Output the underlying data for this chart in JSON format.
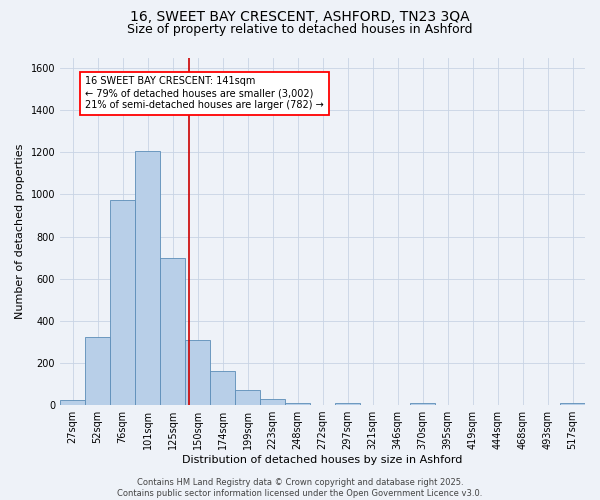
{
  "title_line1": "16, SWEET BAY CRESCENT, ASHFORD, TN23 3QA",
  "title_line2": "Size of property relative to detached houses in Ashford",
  "xlabel": "Distribution of detached houses by size in Ashford",
  "ylabel": "Number of detached properties",
  "categories": [
    "27sqm",
    "52sqm",
    "76sqm",
    "101sqm",
    "125sqm",
    "150sqm",
    "174sqm",
    "199sqm",
    "223sqm",
    "248sqm",
    "272sqm",
    "297sqm",
    "321sqm",
    "346sqm",
    "370sqm",
    "395sqm",
    "419sqm",
    "444sqm",
    "468sqm",
    "493sqm",
    "517sqm"
  ],
  "values": [
    25,
    325,
    975,
    1205,
    700,
    310,
    160,
    70,
    30,
    10,
    0,
    10,
    0,
    0,
    10,
    0,
    0,
    0,
    0,
    0,
    10
  ],
  "bar_color": "#b8cfe8",
  "bar_edge_color": "#5b8db8",
  "grid_color": "#c8d4e4",
  "bg_color": "#eef2f8",
  "vline_color": "#cc0000",
  "vline_x": 4.64,
  "annotation_text": "16 SWEET BAY CRESCENT: 141sqm\n← 79% of detached houses are smaller (3,002)\n21% of semi-detached houses are larger (782) →",
  "footer_line1": "Contains HM Land Registry data © Crown copyright and database right 2025.",
  "footer_line2": "Contains public sector information licensed under the Open Government Licence v3.0.",
  "ylim": [
    0,
    1650
  ],
  "yticks": [
    0,
    200,
    400,
    600,
    800,
    1000,
    1200,
    1400,
    1600
  ],
  "title_fontsize": 10,
  "subtitle_fontsize": 9,
  "axis_label_fontsize": 8,
  "tick_fontsize": 7,
  "annotation_fontsize": 7,
  "footer_fontsize": 6
}
